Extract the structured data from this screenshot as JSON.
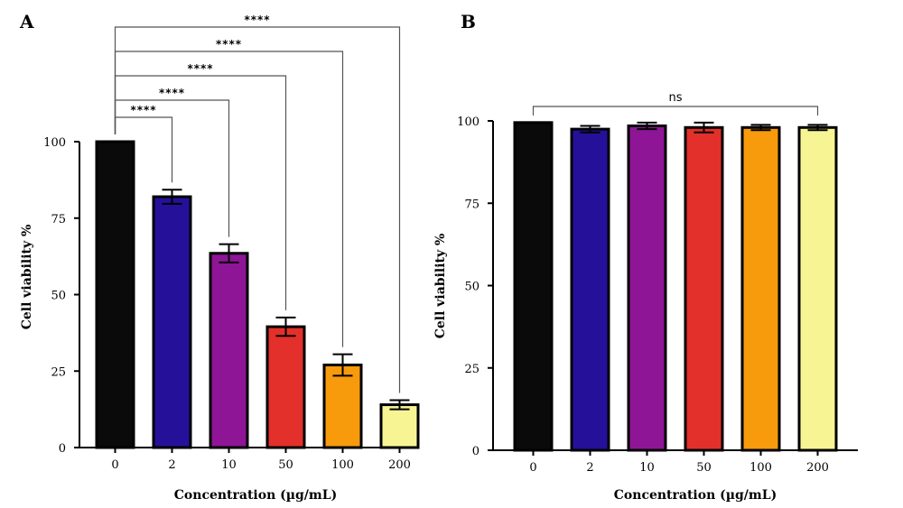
{
  "chart_data": [
    {
      "type": "bar",
      "panel": "A",
      "categories": [
        "0",
        "2",
        "10",
        "50",
        "100",
        "200"
      ],
      "values": [
        100,
        82,
        63.5,
        39.5,
        27,
        14
      ],
      "errors": [
        0,
        2.3,
        3,
        3,
        3.5,
        1.5
      ],
      "colors": [
        "#0a0a0a",
        "#25109a",
        "#8e1596",
        "#e3302a",
        "#f79a0c",
        "#f7f494"
      ],
      "ylim": [
        0,
        100
      ],
      "yticks": [
        0,
        25,
        50,
        75,
        100
      ],
      "xlabel": "Concentration (µg/mL)",
      "ylabel": "Cell viability %",
      "significance": [
        {
          "from": 0,
          "to": 1,
          "label": "****"
        },
        {
          "from": 0,
          "to": 2,
          "label": "****"
        },
        {
          "from": 0,
          "to": 3,
          "label": "****"
        },
        {
          "from": 0,
          "to": 4,
          "label": "****"
        },
        {
          "from": 0,
          "to": 5,
          "label": "****"
        }
      ]
    },
    {
      "type": "bar",
      "panel": "B",
      "categories": [
        "0",
        "2",
        "10",
        "50",
        "100",
        "200"
      ],
      "values": [
        99.5,
        97.5,
        98.5,
        98,
        98,
        98
      ],
      "errors": [
        0,
        1,
        1,
        1.5,
        0.8,
        0.8
      ],
      "colors": [
        "#0a0a0a",
        "#25109a",
        "#8e1596",
        "#e3302a",
        "#f79a0c",
        "#f7f494"
      ],
      "ylim": [
        0,
        100
      ],
      "yticks": [
        0,
        25,
        50,
        75,
        100
      ],
      "xlabel": "Concentration (µg/mL)",
      "ylabel": "Cell viability %",
      "significance": [
        {
          "from": 0,
          "to": 5,
          "label": "ns"
        }
      ]
    }
  ]
}
